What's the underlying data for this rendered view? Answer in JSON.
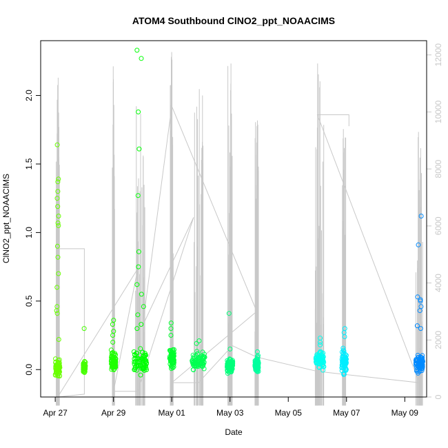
{
  "chart_data": {
    "type": "scatter",
    "title": "ATOM4 Southbound ClNO2_ppt_NOAACIMS",
    "xlabel": "Date",
    "ylabel": "ClNO2_ppt_NOAACIMS",
    "xlim": [
      "2018-04-26T12:00",
      "2018-05-09T18:00"
    ],
    "ylim": [
      -0.2,
      2.4
    ],
    "y2lim": [
      0,
      12500
    ],
    "grid": false,
    "legend": "none",
    "x_ticks": [
      {
        "date": "2018-04-27",
        "label": "Apr 27"
      },
      {
        "date": "2018-04-29",
        "label": "Apr 29"
      },
      {
        "date": "2018-05-01",
        "label": "May 01"
      },
      {
        "date": "2018-05-03",
        "label": "May 03"
      },
      {
        "date": "2018-05-05",
        "label": "May 05"
      },
      {
        "date": "2018-05-07",
        "label": "May 07"
      },
      {
        "date": "2018-05-09",
        "label": "May 09"
      }
    ],
    "y_ticks": [
      {
        "value": 0.0,
        "label": "0.0"
      },
      {
        "value": 0.5,
        "label": "0.5"
      },
      {
        "value": 1.0,
        "label": "1.0"
      },
      {
        "value": 1.5,
        "label": "1.5"
      },
      {
        "value": 2.0,
        "label": "2.0"
      }
    ],
    "y2_ticks": [
      {
        "value": 0,
        "label": "0"
      },
      {
        "value": 2000,
        "label": "2000"
      },
      {
        "value": 4000,
        "label": "4000"
      },
      {
        "value": 6000,
        "label": "6000"
      },
      {
        "value": 8000,
        "label": "8000"
      },
      {
        "value": 10000,
        "label": "10000"
      },
      {
        "value": 12000,
        "label": "12000"
      }
    ],
    "colors": {
      "trace": "#c8c8c8",
      "axis": "#000000",
      "axis_right": "#c8c8c8",
      "point_gradient": [
        "#80ff00",
        "#00ff00",
        "#00ff80",
        "#00ffff",
        "#0080ff"
      ]
    },
    "scatter_groups": [
      {
        "center": "2018-04-27T02:00",
        "spread_days": 0.08,
        "base": 0.01,
        "sd": 0.05,
        "outliers": [
          1.64,
          1.39,
          1.37,
          1.3,
          1.25,
          1.19,
          1.12,
          1.07,
          1.05,
          0.9,
          0.82,
          0.7,
          0.6,
          0.46,
          0.43,
          0.41,
          0.22
        ]
      },
      {
        "center": "2018-04-28T00:00",
        "spread_days": 0.04,
        "base": 0.02,
        "sd": 0.03,
        "outliers": [
          0.3
        ]
      },
      {
        "center": "2018-04-29T00:00",
        "spread_days": 0.08,
        "base": 0.06,
        "sd": 0.06,
        "outliers": [
          0.36,
          0.33,
          0.28,
          0.25,
          0.2
        ]
      },
      {
        "center": "2018-04-29T22:00",
        "spread_days": 0.22,
        "base": 0.05,
        "sd": 0.07,
        "outliers": [
          2.33,
          2.27,
          1.88,
          1.61,
          1.27,
          0.86,
          0.75,
          0.62,
          0.55,
          0.46,
          0.4,
          0.33,
          0.3
        ]
      },
      {
        "center": "2018-05-01T00:00",
        "spread_days": 0.08,
        "base": 0.08,
        "sd": 0.06,
        "outliers": [
          0.34,
          0.3,
          0.25
        ]
      },
      {
        "center": "2018-05-01T22:00",
        "spread_days": 0.22,
        "base": 0.06,
        "sd": 0.05,
        "outliers": [
          0.21,
          0.19
        ]
      },
      {
        "center": "2018-05-03T00:00",
        "spread_days": 0.1,
        "base": 0.03,
        "sd": 0.04,
        "outliers": [
          0.41,
          0.15
        ]
      },
      {
        "center": "2018-05-03T22:00",
        "spread_days": 0.06,
        "base": 0.04,
        "sd": 0.04,
        "outliers": [
          0.13
        ]
      },
      {
        "center": "2018-05-06T02:00",
        "spread_days": 0.14,
        "base": 0.07,
        "sd": 0.05,
        "outliers": [
          0.23,
          0.2,
          0.18
        ]
      },
      {
        "center": "2018-05-06T22:00",
        "spread_days": 0.08,
        "base": 0.06,
        "sd": 0.07,
        "outliers": [
          0.3,
          0.27,
          0.24
        ]
      },
      {
        "center": "2018-05-09T12:00",
        "spread_days": 0.12,
        "base": 0.05,
        "sd": 0.05,
        "outliers": [
          1.12,
          0.91,
          0.53,
          0.51,
          0.5,
          0.46,
          0.43,
          0.32,
          0.3
        ]
      }
    ],
    "trace_bursts": [
      {
        "center": "2018-04-27T02:00",
        "spread_days": 0.06,
        "max": 11200
      },
      {
        "center": "2018-04-29T00:00",
        "spread_days": 0.04,
        "max": 11600
      },
      {
        "center": "2018-04-29T22:00",
        "spread_days": 0.16,
        "max": 10200
      },
      {
        "center": "2018-05-01T00:00",
        "spread_days": 0.06,
        "max": 12100
      },
      {
        "center": "2018-05-01T22:00",
        "spread_days": 0.16,
        "max": 10800
      },
      {
        "center": "2018-05-03T00:00",
        "spread_days": 0.08,
        "max": 11700
      },
      {
        "center": "2018-05-03T22:00",
        "spread_days": 0.06,
        "max": 9700
      },
      {
        "center": "2018-05-06T02:00",
        "spread_days": 0.16,
        "max": 11700
      },
      {
        "center": "2018-05-06T22:00",
        "spread_days": 0.06,
        "max": 9400
      },
      {
        "center": "2018-05-09T12:00",
        "spread_days": 0.12,
        "max": 9300
      }
    ],
    "trace_path": [
      {
        "t": "2018-04-27T01:00",
        "y": 5200
      },
      {
        "t": "2018-04-28T00:00",
        "y": 5200
      },
      {
        "t": "2018-04-28T00:00",
        "y": 100
      },
      {
        "t": "2018-04-27T02:00",
        "y": 0
      },
      {
        "t": "2018-04-29T20:00",
        "y": 4500
      },
      {
        "t": "2018-04-29T00:00",
        "y": 200
      },
      {
        "t": "2018-04-29T20:00",
        "y": 200
      },
      {
        "t": "2018-05-01T18:00",
        "y": 6300
      },
      {
        "t": "2018-04-30T00:00",
        "y": 2500
      },
      {
        "t": "2018-05-01T00:00",
        "y": 10200
      },
      {
        "t": "2018-05-03T22:00",
        "y": 3000
      },
      {
        "t": "2018-05-01T00:00",
        "y": 500
      },
      {
        "t": "2018-05-01T22:00",
        "y": 500
      },
      {
        "t": "2018-05-03T02:00",
        "y": 1800
      },
      {
        "t": "2018-05-03T22:00",
        "y": 1400
      },
      {
        "t": "2018-05-06T00:00",
        "y": 900
      },
      {
        "t": "2018-05-09T12:00",
        "y": 500
      },
      {
        "t": "2018-05-06T00:00",
        "y": 9900
      },
      {
        "t": "2018-05-07T02:00",
        "y": 9900
      },
      {
        "t": "2018-05-07T02:00",
        "y": 9500
      }
    ]
  }
}
